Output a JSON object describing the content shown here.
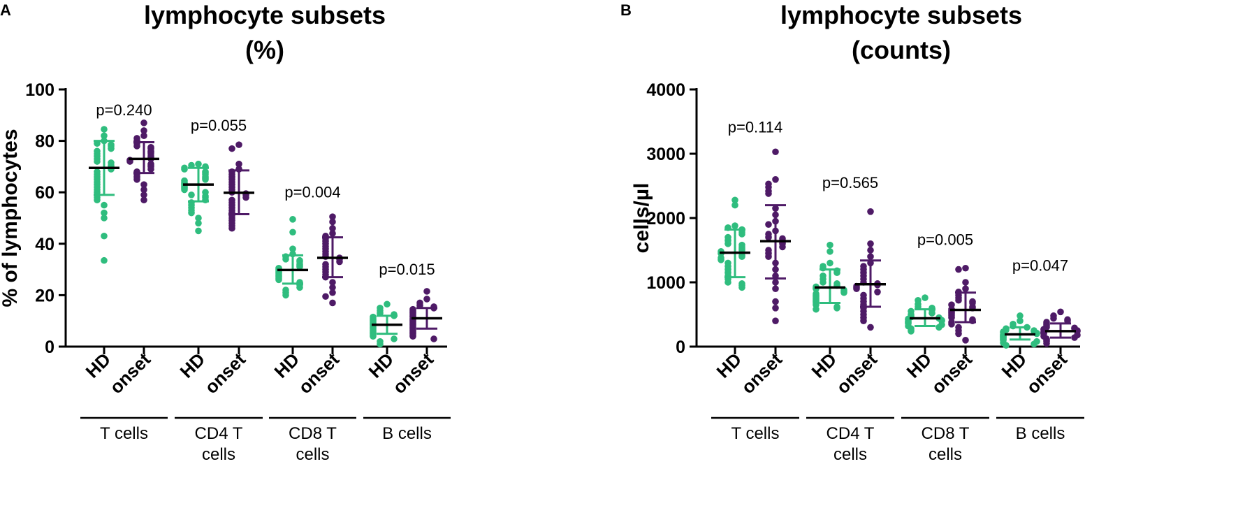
{
  "colors": {
    "HD": "#2fbd7e",
    "onset": "#4e1a66",
    "median": "#000000",
    "axis": "#000000"
  },
  "chart_data": [
    {
      "type": "scatter",
      "panel": "A",
      "title_line1": "lymphocyte subsets",
      "title_line2": "(%)",
      "ylabel": "% of lymphocytes",
      "ylim": [
        0,
        100
      ],
      "yticks": [
        0,
        20,
        40,
        60,
        80,
        100
      ],
      "ytick_labels": [
        "0",
        "20",
        "40",
        "60",
        "80",
        "100"
      ],
      "x_labels": [
        "HD",
        "onset",
        "HD",
        "onset",
        "HD",
        "onset",
        "HD",
        "onset"
      ],
      "groups": [
        {
          "line1": "T cells",
          "line2": "",
          "p_value": "p=0.240",
          "p_y": 90
        },
        {
          "line1": "CD4 T",
          "line2": "cells",
          "p_value": "p=0.055",
          "p_y": 84
        },
        {
          "line1": "CD8 T",
          "line2": "cells",
          "p_value": "p=0.004",
          "p_y": 58
        },
        {
          "line1": "B cells",
          "line2": "",
          "p_value": "p=0.015",
          "p_y": 28
        }
      ],
      "series": [
        {
          "name": "HD",
          "group": "T cells",
          "median": 69.5,
          "sd_low": 59,
          "sd_high": 80,
          "values": [
            84.5,
            82,
            80,
            79,
            78.5,
            78,
            77,
            76,
            75,
            74,
            73,
            72,
            71.5,
            70.5,
            70,
            69,
            68,
            67,
            66,
            65,
            64,
            63,
            62,
            61,
            60,
            59,
            58,
            57,
            55,
            52,
            50,
            43,
            33.5
          ]
        },
        {
          "name": "onset",
          "group": "T cells",
          "median": 73,
          "sd_low": 67.5,
          "sd_high": 79.5,
          "values": [
            87,
            84,
            82,
            81,
            80,
            79,
            78,
            77.5,
            77,
            76,
            75.5,
            75,
            74,
            73.5,
            73,
            72.5,
            72,
            71,
            70.5,
            70,
            69,
            68,
            67,
            66,
            65,
            63,
            61,
            59,
            57
          ]
        },
        {
          "name": "HD",
          "group": "CD4 T cells",
          "median": 63,
          "sd_low": 56.5,
          "sd_high": 69.5,
          "values": [
            71,
            70.5,
            70,
            69.5,
            69,
            68,
            67.5,
            67,
            66,
            65.5,
            65,
            64.5,
            64,
            63.5,
            63,
            62.5,
            62,
            61.5,
            61,
            60,
            59,
            58.5,
            58,
            57,
            56,
            55,
            54,
            53,
            52,
            50,
            48,
            45
          ]
        },
        {
          "name": "onset",
          "group": "CD4 T cells",
          "median": 59.8,
          "sd_low": 51.5,
          "sd_high": 68.5,
          "values": [
            78.5,
            77,
            71,
            69,
            68,
            67,
            66,
            65,
            64,
            63,
            62,
            61,
            60,
            59.5,
            59,
            58,
            57,
            56,
            55,
            54,
            53,
            52,
            51,
            50,
            49,
            48,
            47,
            46
          ]
        },
        {
          "name": "HD",
          "group": "CD8 T cells",
          "median": 29.8,
          "sd_low": 24.5,
          "sd_high": 35.5,
          "values": [
            49.5,
            44.5,
            38,
            36,
            35,
            34,
            33.5,
            33,
            32,
            31.5,
            31,
            30.5,
            30,
            29.5,
            29,
            28.5,
            28,
            27.5,
            27,
            26.5,
            26,
            25,
            24.5,
            24,
            23,
            22,
            21,
            20
          ]
        },
        {
          "name": "onset",
          "group": "CD8 T cells",
          "median": 34.5,
          "sd_low": 27,
          "sd_high": 42.5,
          "values": [
            50.5,
            48.5,
            46,
            44,
            43,
            42,
            41,
            40,
            39,
            38,
            37,
            36,
            35,
            34.5,
            34,
            33,
            32,
            31,
            30,
            29,
            28,
            27,
            25,
            23,
            21,
            19.5,
            17
          ]
        },
        {
          "name": "HD",
          "group": "B cells",
          "median": 8.5,
          "sd_low": 5,
          "sd_high": 12,
          "values": [
            16.5,
            15,
            14,
            13,
            12.5,
            12,
            11.5,
            11,
            10.5,
            10,
            9.5,
            9,
            8.5,
            8,
            7.5,
            7,
            6.5,
            6,
            5.5,
            5,
            4.5,
            4,
            3,
            2,
            1
          ]
        },
        {
          "name": "onset",
          "group": "B cells",
          "median": 11,
          "sd_low": 7,
          "sd_high": 15,
          "values": [
            21.5,
            18.5,
            17,
            16,
            15.5,
            15,
            14.5,
            14,
            13.5,
            13,
            12.5,
            12,
            11.5,
            11,
            10.5,
            10,
            9.5,
            9,
            8.5,
            8,
            7.5,
            7,
            6.5,
            6,
            5.5,
            5,
            4.5,
            4,
            3
          ]
        }
      ]
    },
    {
      "type": "scatter",
      "panel": "B",
      "title_line1": "lymphocyte subsets",
      "title_line2": "(counts)",
      "ylabel": "cells/µl",
      "ylim": [
        0,
        4000
      ],
      "yticks": [
        0,
        1000,
        2000,
        3000,
        4000
      ],
      "ytick_labels": [
        "0",
        "1000",
        "2000",
        "3000",
        "4000"
      ],
      "x_labels": [
        "HD",
        "onset",
        "HD",
        "onset",
        "HD",
        "onset",
        "HD",
        "onset"
      ],
      "groups": [
        {
          "line1": "T cells",
          "line2": "",
          "p_value": "p=0.114",
          "p_y": 3330
        },
        {
          "line1": "CD4 T",
          "line2": "cells",
          "p_value": "p=0.565",
          "p_y": 2470
        },
        {
          "line1": "CD8 T",
          "line2": "cells",
          "p_value": "p=0.005",
          "p_y": 1580
        },
        {
          "line1": "B cells",
          "line2": "",
          "p_value": "p=0.047",
          "p_y": 1180
        }
      ],
      "series": [
        {
          "name": "HD",
          "group": "T cells",
          "median": 1460,
          "sd_low": 1080,
          "sd_high": 1820,
          "values": [
            2280,
            2200,
            1880,
            1850,
            1820,
            1780,
            1750,
            1700,
            1650,
            1600,
            1580,
            1550,
            1520,
            1500,
            1480,
            1450,
            1420,
            1400,
            1380,
            1350,
            1300,
            1250,
            1200,
            1150,
            1100,
            1050,
            1000,
            980,
            950,
            920
          ]
        },
        {
          "name": "onset",
          "group": "T cells",
          "median": 1640,
          "sd_low": 1060,
          "sd_high": 2200,
          "values": [
            3030,
            2600,
            2530,
            2480,
            2420,
            2380,
            2150,
            2050,
            1950,
            1900,
            1800,
            1750,
            1700,
            1680,
            1650,
            1620,
            1600,
            1550,
            1500,
            1450,
            1400,
            1300,
            1200,
            1100,
            1000,
            900,
            700,
            600,
            400
          ]
        },
        {
          "name": "HD",
          "group": "CD4 T cells",
          "median": 920,
          "sd_low": 680,
          "sd_high": 1200,
          "values": [
            1580,
            1480,
            1300,
            1250,
            1220,
            1180,
            1150,
            1100,
            1050,
            1000,
            980,
            950,
            930,
            910,
            900,
            880,
            860,
            840,
            820,
            800,
            780,
            760,
            740,
            720,
            700,
            680,
            650,
            620,
            600,
            580
          ]
        },
        {
          "name": "onset",
          "group": "CD4 T cells",
          "median": 970,
          "sd_low": 620,
          "sd_high": 1340,
          "values": [
            2100,
            1600,
            1500,
            1400,
            1300,
            1250,
            1200,
            1150,
            1100,
            1050,
            1000,
            980,
            960,
            940,
            920,
            900,
            850,
            800,
            750,
            700,
            650,
            600,
            550,
            500,
            450,
            400,
            300
          ]
        },
        {
          "name": "HD",
          "group": "CD8 T cells",
          "median": 440,
          "sd_low": 320,
          "sd_high": 580,
          "values": [
            760,
            720,
            660,
            620,
            600,
            570,
            550,
            520,
            500,
            480,
            460,
            450,
            440,
            430,
            420,
            410,
            400,
            390,
            380,
            370,
            360,
            340,
            320,
            300,
            280,
            260,
            240
          ]
        },
        {
          "name": "onset",
          "group": "CD8 T cells",
          "median": 570,
          "sd_low": 380,
          "sd_high": 840,
          "values": [
            1220,
            1200,
            1000,
            900,
            850,
            800,
            760,
            720,
            700,
            680,
            650,
            620,
            600,
            580,
            560,
            540,
            520,
            500,
            480,
            450,
            420,
            400,
            380,
            350,
            300,
            250,
            200,
            100
          ]
        },
        {
          "name": "HD",
          "group": "B cells",
          "median": 190,
          "sd_low": 110,
          "sd_high": 300,
          "values": [
            480,
            400,
            350,
            320,
            300,
            280,
            260,
            250,
            240,
            230,
            220,
            210,
            200,
            190,
            180,
            170,
            160,
            150,
            140,
            130,
            120,
            110,
            100,
            80,
            60,
            40,
            20
          ]
        },
        {
          "name": "onset",
          "group": "B cells",
          "median": 240,
          "sd_low": 140,
          "sd_high": 360,
          "values": [
            540,
            480,
            440,
            420,
            400,
            380,
            360,
            340,
            320,
            300,
            290,
            280,
            270,
            260,
            250,
            240,
            230,
            220,
            210,
            200,
            180,
            160,
            140,
            120,
            100,
            80,
            50
          ]
        }
      ]
    }
  ]
}
